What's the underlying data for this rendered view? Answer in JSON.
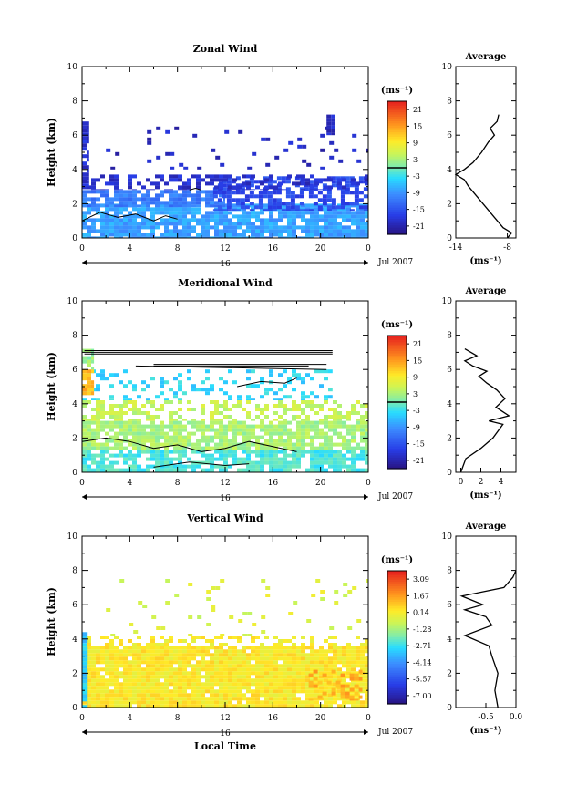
{
  "figure": {
    "xlabel_bottom": "Local Time",
    "date_label": "Jul 2007",
    "day_marker": "16",
    "unit_label": "(ms⁻¹)"
  },
  "chart_data": [
    {
      "type": "heatmap",
      "title": "Zonal Wind",
      "ylabel": "Height (km)",
      "xlim": [
        0,
        24
      ],
      "ylim": [
        0,
        10
      ],
      "x_ticks": [
        "0",
        "4",
        "8",
        "12",
        "16",
        "20",
        "0"
      ],
      "y_ticks": [
        "0",
        "2",
        "4",
        "6",
        "8",
        "10"
      ],
      "colorbar": {
        "ticks": [
          "21",
          "15",
          "9",
          "3",
          "-3",
          "-9",
          "-15",
          "-21"
        ],
        "range": [
          -24,
          24
        ]
      },
      "layers": [
        {
          "x": [
            0.0,
            24.0
          ],
          "y": [
            0.0,
            2.0
          ],
          "value": -8,
          "density": 0.85
        },
        {
          "x": [
            0.0,
            12.0
          ],
          "y": [
            1.8,
            2.8
          ],
          "value": -11,
          "density": 0.7
        },
        {
          "x": [
            11.0,
            24.0
          ],
          "y": [
            1.6,
            3.6
          ],
          "value": -16,
          "density": 0.6
        },
        {
          "x": [
            0.0,
            24.0
          ],
          "y": [
            2.8,
            3.7
          ],
          "value": -19,
          "density": 0.45
        },
        {
          "x": [
            2.0,
            24.0
          ],
          "y": [
            4.0,
            6.5
          ],
          "value": -20,
          "density": 0.08
        },
        {
          "x": [
            0.0,
            0.6
          ],
          "y": [
            3.0,
            6.8
          ],
          "value": -19,
          "density": 0.8
        },
        {
          "x": [
            20.5,
            21.2
          ],
          "y": [
            6.0,
            7.2
          ],
          "value": -20,
          "density": 0.9
        }
      ],
      "contours": [
        {
          "value": -3,
          "points": [
            [
              0.0,
              1.0
            ],
            [
              1.5,
              1.5
            ],
            [
              3.0,
              1.2
            ],
            [
              4.5,
              1.4
            ],
            [
              6.0,
              1.0
            ],
            [
              7.0,
              1.3
            ],
            [
              8.0,
              1.1
            ]
          ]
        },
        {
          "value": -3,
          "points": [
            [
              9.0,
              2.8
            ],
            [
              9.5,
              2.9
            ],
            [
              10.0,
              2.8
            ]
          ]
        }
      ],
      "average": {
        "title": "Average",
        "xlabel": "(ms⁻¹)",
        "xlim": [
          -14,
          -7
        ],
        "x_ticks": [
          "-14",
          "-8"
        ],
        "y_ticks": [
          "0",
          "2",
          "4",
          "6",
          "8",
          "10"
        ],
        "profile": [
          [
            -8.0,
            0.0
          ],
          [
            -7.5,
            0.3
          ],
          [
            -8.5,
            0.6
          ],
          [
            -9.5,
            1.2
          ],
          [
            -10.5,
            1.8
          ],
          [
            -11.5,
            2.4
          ],
          [
            -12.5,
            3.0
          ],
          [
            -13.0,
            3.4
          ],
          [
            -14.0,
            3.7
          ],
          [
            -13.0,
            4.0
          ],
          [
            -12.0,
            4.4
          ],
          [
            -11.0,
            5.0
          ],
          [
            -10.2,
            5.6
          ],
          [
            -9.5,
            6.0
          ],
          [
            -10.0,
            6.4
          ],
          [
            -9.2,
            6.8
          ],
          [
            -9.0,
            7.2
          ]
        ]
      }
    },
    {
      "type": "heatmap",
      "title": "Meridional Wind",
      "ylabel": "Height (km)",
      "xlim": [
        0,
        24
      ],
      "ylim": [
        0,
        10
      ],
      "x_ticks": [
        "0",
        "4",
        "8",
        "12",
        "16",
        "20",
        "0"
      ],
      "y_ticks": [
        "0",
        "2",
        "4",
        "6",
        "8",
        "10"
      ],
      "colorbar": {
        "ticks": [
          "21",
          "15",
          "9",
          "3",
          "-3",
          "-9",
          "-15",
          "-21"
        ],
        "range": [
          -24,
          24
        ]
      },
      "layers": [
        {
          "x": [
            0.0,
            24.0
          ],
          "y": [
            0.0,
            1.3
          ],
          "value": -2,
          "density": 0.75
        },
        {
          "x": [
            0.0,
            24.0
          ],
          "y": [
            1.3,
            3.0
          ],
          "value": 3,
          "density": 0.8
        },
        {
          "x": [
            0.0,
            24.0
          ],
          "y": [
            3.0,
            4.2
          ],
          "value": 5,
          "density": 0.5
        },
        {
          "x": [
            0.0,
            21.0
          ],
          "y": [
            4.2,
            6.0
          ],
          "value": -4,
          "density": 0.25
        },
        {
          "x": [
            0.0,
            1.0
          ],
          "y": [
            4.5,
            6.0
          ],
          "value": 13,
          "density": 0.9
        },
        {
          "x": [
            0.0,
            1.0
          ],
          "y": [
            6.0,
            7.2
          ],
          "value": 2,
          "density": 0.7
        }
      ],
      "contours": [
        {
          "value": -3,
          "points": [
            [
              0.2,
              7.1
            ],
            [
              21.0,
              7.1
            ]
          ]
        },
        {
          "value": -3,
          "points": [
            [
              0.2,
              7.0
            ],
            [
              21.0,
              7.0
            ]
          ]
        },
        {
          "value": -3,
          "points": [
            [
              0.2,
              6.9
            ],
            [
              21.0,
              6.9
            ]
          ]
        },
        {
          "value": -3,
          "points": [
            [
              6.0,
              6.3
            ],
            [
              20.5,
              6.3
            ]
          ]
        },
        {
          "value": -3,
          "points": [
            [
              6.0,
              6.2
            ],
            [
              19.0,
              6.2
            ]
          ]
        },
        {
          "value": -3,
          "points": [
            [
              4.5,
              6.2
            ],
            [
              20.5,
              6.0
            ]
          ]
        },
        {
          "value": -3,
          "points": [
            [
              0.0,
              1.8
            ],
            [
              2.0,
              2.0
            ],
            [
              4.0,
              1.8
            ],
            [
              6.0,
              1.4
            ],
            [
              8.0,
              1.6
            ],
            [
              10.0,
              1.2
            ],
            [
              12.0,
              1.4
            ],
            [
              14.0,
              1.8
            ],
            [
              16.0,
              1.5
            ],
            [
              18.0,
              1.2
            ]
          ]
        },
        {
          "value": -3,
          "points": [
            [
              6.0,
              0.3
            ],
            [
              9.0,
              0.6
            ],
            [
              12.0,
              0.4
            ],
            [
              14.0,
              0.5
            ]
          ]
        },
        {
          "value": -3,
          "points": [
            [
              13.0,
              5.0
            ],
            [
              15.0,
              5.3
            ],
            [
              17.0,
              5.2
            ],
            [
              18.0,
              5.5
            ]
          ]
        }
      ],
      "average": {
        "title": "Average",
        "xlabel": "(ms⁻¹)",
        "xlim": [
          -0.5,
          5.5
        ],
        "x_ticks": [
          "0",
          "2",
          "4"
        ],
        "y_ticks": [
          "0",
          "2",
          "4",
          "6",
          "8",
          "10"
        ],
        "profile": [
          [
            0.0,
            0.0
          ],
          [
            0.5,
            0.8
          ],
          [
            2.0,
            1.4
          ],
          [
            3.2,
            2.0
          ],
          [
            4.2,
            2.8
          ],
          [
            2.8,
            3.0
          ],
          [
            4.8,
            3.3
          ],
          [
            3.5,
            3.8
          ],
          [
            4.4,
            4.3
          ],
          [
            3.6,
            4.8
          ],
          [
            2.6,
            5.2
          ],
          [
            1.8,
            5.6
          ],
          [
            2.6,
            5.9
          ],
          [
            1.2,
            6.2
          ],
          [
            0.4,
            6.5
          ],
          [
            1.6,
            6.8
          ],
          [
            0.4,
            7.2
          ]
        ]
      }
    },
    {
      "type": "heatmap",
      "title": "Vertical Wind",
      "ylabel": "Height (km)",
      "xlim": [
        0,
        24
      ],
      "ylim": [
        0,
        10
      ],
      "x_ticks": [
        "0",
        "4",
        "8",
        "12",
        "16",
        "20",
        "0"
      ],
      "y_ticks": [
        "0",
        "2",
        "4",
        "6",
        "8",
        "10"
      ],
      "colorbar": {
        "ticks": [
          "3.09",
          "1.67",
          "0.14",
          "-1.28",
          "-2.71",
          "-4.14",
          "-5.57",
          "-7.00"
        ],
        "range": [
          -7.7,
          3.8
        ]
      },
      "layers": [
        {
          "x": [
            0.0,
            24.0
          ],
          "y": [
            0.0,
            3.6
          ],
          "value": 0.3,
          "density": 0.95
        },
        {
          "x": [
            19.0,
            23.5
          ],
          "y": [
            0.4,
            2.2
          ],
          "value": 1.3,
          "density": 0.35
        },
        {
          "x": [
            0.0,
            24.0
          ],
          "y": [
            3.6,
            4.2
          ],
          "value": 0.2,
          "density": 0.35
        },
        {
          "x": [
            2.0,
            24.0
          ],
          "y": [
            4.2,
            7.5
          ],
          "value": -0.4,
          "density": 0.06
        },
        {
          "x": [
            0.0,
            0.4
          ],
          "y": [
            0.0,
            4.4
          ],
          "value": -3.2,
          "density": 0.9
        }
      ],
      "contours": [],
      "average": {
        "title": "Average",
        "xlabel": "(ms⁻¹)",
        "xlim": [
          -1.0,
          0.0
        ],
        "x_ticks": [
          "-0.5",
          "0.0"
        ],
        "y_ticks": [
          "0",
          "2",
          "4",
          "6",
          "8",
          "10"
        ],
        "profile": [
          [
            -0.3,
            0.0
          ],
          [
            -0.35,
            1.0
          ],
          [
            -0.3,
            2.0
          ],
          [
            -0.4,
            3.0
          ],
          [
            -0.45,
            3.6
          ],
          [
            -0.85,
            4.2
          ],
          [
            -0.4,
            4.8
          ],
          [
            -0.5,
            5.3
          ],
          [
            -0.85,
            5.7
          ],
          [
            -0.55,
            6.0
          ],
          [
            -0.9,
            6.5
          ],
          [
            -0.2,
            7.0
          ],
          [
            -0.05,
            7.6
          ],
          [
            0.0,
            8.0
          ]
        ]
      }
    }
  ]
}
